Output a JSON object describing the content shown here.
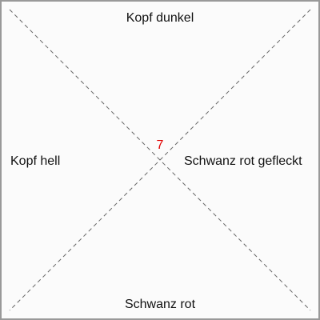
{
  "labels": {
    "top": "Kopf dunkel",
    "bottom": "Schwanz rot",
    "left": "Kopf hell",
    "right": "Schwanz rot gefleckt"
  },
  "center_value": "7",
  "colors": {
    "border": "#999999",
    "background": "#fbfbfb",
    "dashed_line": "#666666",
    "center_value": "#e00000",
    "text": "#111111"
  }
}
